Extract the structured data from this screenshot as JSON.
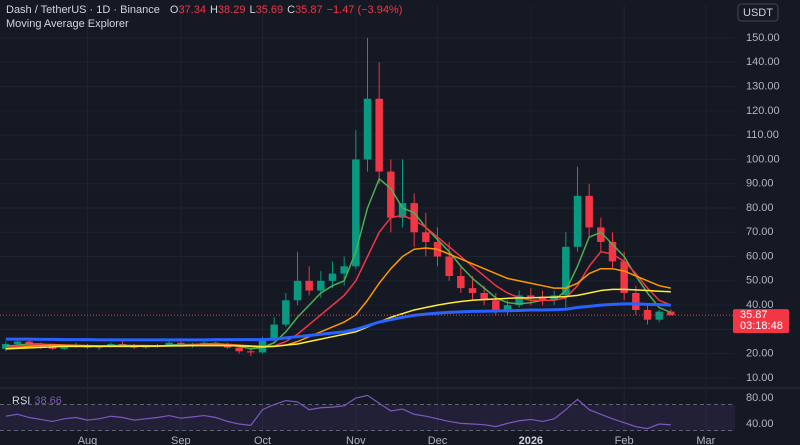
{
  "chart_data": {
    "type": "candlestick",
    "title": "Dash / TetherUS · 1D · Binance",
    "indicator": "Moving Average Explorer",
    "quote_currency": "USDT",
    "countdown": "03:18:48",
    "ohlc_labels": [
      "O",
      "H",
      "L",
      "C"
    ],
    "change": "−1.47",
    "change_pct": "(−3.94%)",
    "up_color": "#089981",
    "down_color": "#f23645",
    "grid": true,
    "categories": [
      null,
      null,
      null,
      null,
      null,
      null,
      null,
      "Aug",
      null,
      null,
      null,
      null,
      null,
      null,
      null,
      "Sep",
      null,
      null,
      null,
      null,
      null,
      null,
      "Oct",
      null,
      null,
      null,
      null,
      null,
      null,
      null,
      "Nov",
      null,
      null,
      null,
      null,
      null,
      null,
      "Dec",
      null,
      null,
      null,
      null,
      null,
      null,
      null,
      "2026",
      null,
      null,
      null,
      null,
      null,
      null,
      null,
      "Feb",
      null,
      null,
      null,
      null,
      null,
      null,
      "Mar",
      null,
      null
    ],
    "open": [
      22,
      24,
      25,
      23.5,
      23,
      22,
      23,
      23.5,
      22.5,
      23,
      24,
      23.5,
      22.5,
      23,
      23.5,
      24.5,
      23.5,
      24,
      24.5,
      24,
      22.5,
      21,
      20.5,
      26,
      32,
      42,
      50,
      46,
      50,
      53,
      56,
      100,
      125,
      95,
      76,
      82,
      70,
      66,
      60,
      52,
      47,
      45,
      42,
      38,
      40,
      44,
      43,
      42,
      44,
      64,
      85,
      72,
      66,
      58,
      45,
      38,
      34,
      37.34,
      null,
      null,
      null,
      null,
      null
    ],
    "high": [
      25,
      26,
      26,
      24.5,
      24,
      23.5,
      24.5,
      24,
      23.5,
      24.5,
      25,
      24,
      23.5,
      24,
      25,
      25,
      24.5,
      25,
      25,
      24.5,
      23,
      22,
      27,
      35,
      45,
      62,
      56,
      54,
      58,
      60,
      112,
      150,
      140,
      100,
      100,
      86,
      78,
      72,
      66,
      56,
      52,
      48,
      45,
      42,
      46,
      47,
      46,
      46,
      70,
      97,
      90,
      76,
      70,
      62,
      48,
      40,
      38,
      38.29,
      null,
      null,
      null,
      null,
      null
    ],
    "low": [
      21,
      23,
      23,
      22,
      21.5,
      21.5,
      22.5,
      22,
      21.5,
      22.5,
      23,
      22,
      22,
      22.5,
      23,
      23,
      22.5,
      23,
      23.5,
      22,
      20,
      19,
      20,
      25,
      31,
      40,
      44,
      43,
      47,
      48,
      55,
      95,
      90,
      70,
      72,
      64,
      60,
      56,
      50,
      45,
      42,
      40,
      36,
      36,
      39,
      40,
      40,
      40,
      38,
      62,
      68,
      62,
      55,
      42,
      36,
      32,
      33,
      35.69,
      null,
      null,
      null,
      null,
      null
    ],
    "close": [
      24,
      25,
      23.5,
      23,
      22,
      23,
      23.5,
      22.5,
      23,
      24,
      23.5,
      22.5,
      23,
      23.5,
      24.5,
      23.5,
      24,
      24.5,
      24,
      22.5,
      21,
      20.5,
      26,
      32,
      42,
      50,
      46,
      50,
      53,
      56,
      100,
      125,
      95,
      76,
      82,
      70,
      66,
      60,
      52,
      47,
      45,
      42,
      38,
      40,
      44,
      43,
      42,
      44,
      64,
      85,
      72,
      66,
      58,
      45,
      38,
      34,
      37.34,
      35.87,
      null,
      null,
      null,
      null,
      null
    ],
    "ylim": [
      7.1,
      163.6
    ],
    "yticks": [
      {
        "value": 10,
        "label": "10.00"
      },
      {
        "value": 20,
        "label": "20.00"
      },
      {
        "value": 30,
        "label": "30.00"
      },
      {
        "value": 40,
        "label": "40.00"
      },
      {
        "value": 50,
        "label": "50.00"
      },
      {
        "value": 60,
        "label": "60.00"
      },
      {
        "value": 70,
        "label": "70.00"
      },
      {
        "value": 80,
        "label": "80.00"
      },
      {
        "value": 90,
        "label": "90.00"
      },
      {
        "value": 100,
        "label": "100.00"
      },
      {
        "value": 110,
        "label": "110.00"
      },
      {
        "value": 120,
        "label": "120.00"
      },
      {
        "value": 130,
        "label": "130.00"
      },
      {
        "value": 140,
        "label": "140.00"
      },
      {
        "value": 150,
        "label": "150.00"
      }
    ],
    "moving_averages": [
      {
        "color": "#4caf50",
        "values": [
          23,
          23.5,
          24,
          24,
          23.5,
          23,
          23,
          23,
          23,
          23.2,
          23.5,
          23.3,
          23,
          23,
          23.5,
          23.8,
          23.8,
          24,
          24.2,
          23.8,
          23,
          22,
          22.5,
          24.5,
          29,
          35,
          40,
          45,
          48,
          50,
          62,
          80,
          92,
          88,
          80,
          78,
          72,
          67,
          62,
          56,
          51,
          47,
          43,
          41,
          40.5,
          41,
          42,
          42,
          46,
          56,
          68,
          70,
          65,
          60,
          52,
          45,
          39,
          37,
          null,
          null,
          null,
          null,
          null
        ]
      },
      {
        "color": "#f23645",
        "values": [
          22.5,
          23,
          23.5,
          23.8,
          23.8,
          23.5,
          23.3,
          23.2,
          23.1,
          23.2,
          23.3,
          23.3,
          23.2,
          23.1,
          23.2,
          23.4,
          23.6,
          23.8,
          24,
          23.9,
          23.5,
          23,
          22.8,
          23.2,
          25,
          28,
          32,
          36,
          40,
          44,
          50,
          60,
          70,
          76,
          77,
          75,
          72,
          68,
          64,
          60,
          56,
          52,
          48,
          45,
          43,
          42,
          42,
          42,
          43,
          48,
          56,
          62,
          61,
          58,
          53,
          47,
          42,
          40,
          null,
          null,
          null,
          null,
          null
        ]
      },
      {
        "color": "#ff9800",
        "values": [
          22,
          22.5,
          23,
          23.3,
          23.5,
          23.5,
          23.4,
          23.3,
          23.2,
          23.2,
          23.2,
          23.3,
          23.3,
          23.2,
          23.2,
          23.3,
          23.4,
          23.5,
          23.6,
          23.6,
          23.4,
          23.2,
          23,
          23,
          23.5,
          25,
          27,
          29,
          31,
          33,
          36,
          42,
          49,
          55,
          60,
          63,
          63.5,
          63,
          61,
          59,
          57,
          55,
          53,
          51,
          50,
          49,
          48,
          47,
          47,
          49,
          53,
          55,
          55,
          54,
          52,
          50,
          48,
          47,
          null,
          null,
          null,
          null,
          null
        ]
      },
      {
        "color": "#ffeb3b",
        "values": [
          22,
          22.2,
          22.4,
          22.6,
          22.8,
          23,
          23,
          23,
          23,
          23,
          23,
          23,
          23.1,
          23.1,
          23.2,
          23.2,
          23.3,
          23.3,
          23.3,
          23.3,
          23.2,
          23,
          22.8,
          23,
          23.5,
          24,
          25,
          26,
          27,
          28,
          29,
          31,
          33,
          35,
          36.5,
          38,
          39,
          40,
          40.8,
          41.5,
          42,
          42.3,
          42.5,
          42.8,
          43,
          43,
          43.2,
          43.3,
          43.5,
          44,
          45,
          46,
          46.5,
          46.5,
          46.3,
          46,
          45.7,
          45.5,
          null,
          null,
          null,
          null,
          null
        ]
      },
      {
        "color": "#2962ff",
        "values": [
          26,
          26,
          26,
          25.9,
          25.9,
          25.8,
          25.8,
          25.8,
          25.7,
          25.7,
          25.7,
          25.7,
          25.7,
          25.7,
          25.7,
          25.7,
          25.7,
          25.7,
          25.8,
          25.8,
          25.8,
          25.8,
          25.8,
          26,
          26.5,
          27,
          27.5,
          28,
          28.5,
          29,
          30,
          31.5,
          33,
          34,
          35,
          35.8,
          36.3,
          36.7,
          37,
          37.2,
          37.4,
          37.5,
          37.6,
          37.7,
          37.8,
          38,
          38,
          38.1,
          38.3,
          39,
          39.5,
          40,
          40.3,
          40.5,
          40.5,
          40.3,
          40.2,
          40,
          null,
          null,
          null,
          null,
          null
        ]
      }
    ],
    "rsi": {
      "type": "line",
      "title": "RSI",
      "color": "#7e57c2",
      "band_color": "#7e57c2",
      "bands": [
        30,
        70
      ],
      "ylim": [
        26.2,
        92.3
      ],
      "yticks": [
        {
          "value": 40,
          "label": "40.00"
        },
        {
          "value": 80,
          "label": "80.00"
        }
      ],
      "values": [
        52,
        55,
        50,
        47,
        44,
        48,
        50,
        46,
        48,
        52,
        50,
        46,
        48,
        50,
        53,
        49,
        51,
        53,
        50,
        44,
        40,
        38,
        62,
        70,
        76,
        74,
        62,
        65,
        66,
        68,
        80,
        84,
        72,
        60,
        63,
        55,
        52,
        48,
        44,
        41,
        40,
        39,
        36,
        41,
        45,
        47,
        44,
        48,
        62,
        78,
        62,
        55,
        48,
        42,
        36,
        33,
        40,
        38.66,
        null,
        null,
        null,
        null,
        null
      ]
    }
  }
}
